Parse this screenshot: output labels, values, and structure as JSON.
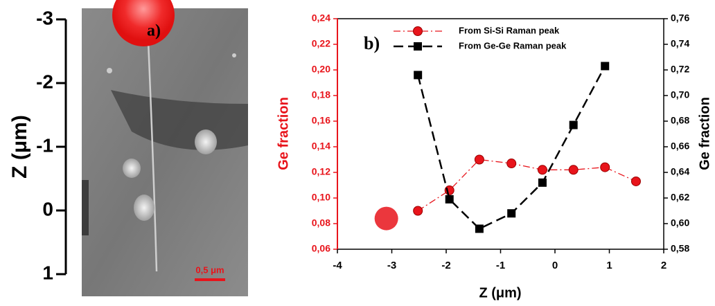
{
  "chart_data": [
    {
      "type": "image-axis",
      "panel_label": "a)",
      "y_label": "Z (μm)",
      "scale_bar": "0,5 μm",
      "ylim": [
        -3,
        1
      ],
      "yticks": [
        -3,
        -2,
        -1,
        0,
        1
      ],
      "inverted": true
    },
    {
      "type": "line",
      "panel_label": "b)",
      "x_label": "Z (μm)",
      "y_label": "Ge fraction",
      "y2_label": "Ge fraction",
      "xlim": [
        -4,
        2
      ],
      "xticks": [
        -4,
        -3,
        -2,
        -1,
        0,
        1,
        2
      ],
      "ylim": [
        0.06,
        0.24
      ],
      "yticks": [
        {
          "value": 0.06,
          "label": "0,06"
        },
        {
          "value": 0.08,
          "label": "0,08"
        },
        {
          "value": 0.1,
          "label": "0,10"
        },
        {
          "value": 0.12,
          "label": "0,12"
        },
        {
          "value": 0.14,
          "label": "0,14"
        },
        {
          "value": 0.16,
          "label": "0,16"
        },
        {
          "value": 0.18,
          "label": "0,18"
        },
        {
          "value": 0.2,
          "label": "0,20"
        },
        {
          "value": 0.22,
          "label": "0,22"
        },
        {
          "value": 0.24,
          "label": "0,24"
        }
      ],
      "y2lim": [
        0.58,
        0.76
      ],
      "y2ticks": [
        {
          "value": 0.58,
          "label": "0,58"
        },
        {
          "value": 0.6,
          "label": "0,60"
        },
        {
          "value": 0.62,
          "label": "0,62"
        },
        {
          "value": 0.64,
          "label": "0,64"
        },
        {
          "value": 0.66,
          "label": "0,66"
        },
        {
          "value": 0.68,
          "label": "0,68"
        },
        {
          "value": 0.7,
          "label": "0,70"
        },
        {
          "value": 0.72,
          "label": "0,72"
        },
        {
          "value": 0.74,
          "label": "0,74"
        },
        {
          "value": 0.76,
          "label": "0,76"
        }
      ],
      "highlight": {
        "x": -3.1,
        "value": 0.084,
        "color": "#e8141b"
      },
      "series": [
        {
          "name": "From Si-Si Raman peak",
          "color": "#e8141b",
          "marker": "circle",
          "x": [
            -2.52,
            -1.94,
            -1.39,
            -0.8,
            -0.23,
            0.34,
            0.92,
            1.49
          ],
          "values": [
            0.09,
            0.106,
            0.13,
            0.127,
            0.122,
            0.122,
            0.124,
            0.113
          ]
        },
        {
          "name": "From Ge-Ge Raman peak",
          "color": "#000000",
          "marker": "square",
          "axis": "y2",
          "x": [
            -2.52,
            -1.94,
            -1.39,
            -0.8,
            -0.23,
            0.34,
            0.92
          ],
          "values": [
            0.716,
            0.619,
            0.596,
            0.608,
            0.632,
            0.677,
            0.723
          ]
        }
      ]
    }
  ]
}
